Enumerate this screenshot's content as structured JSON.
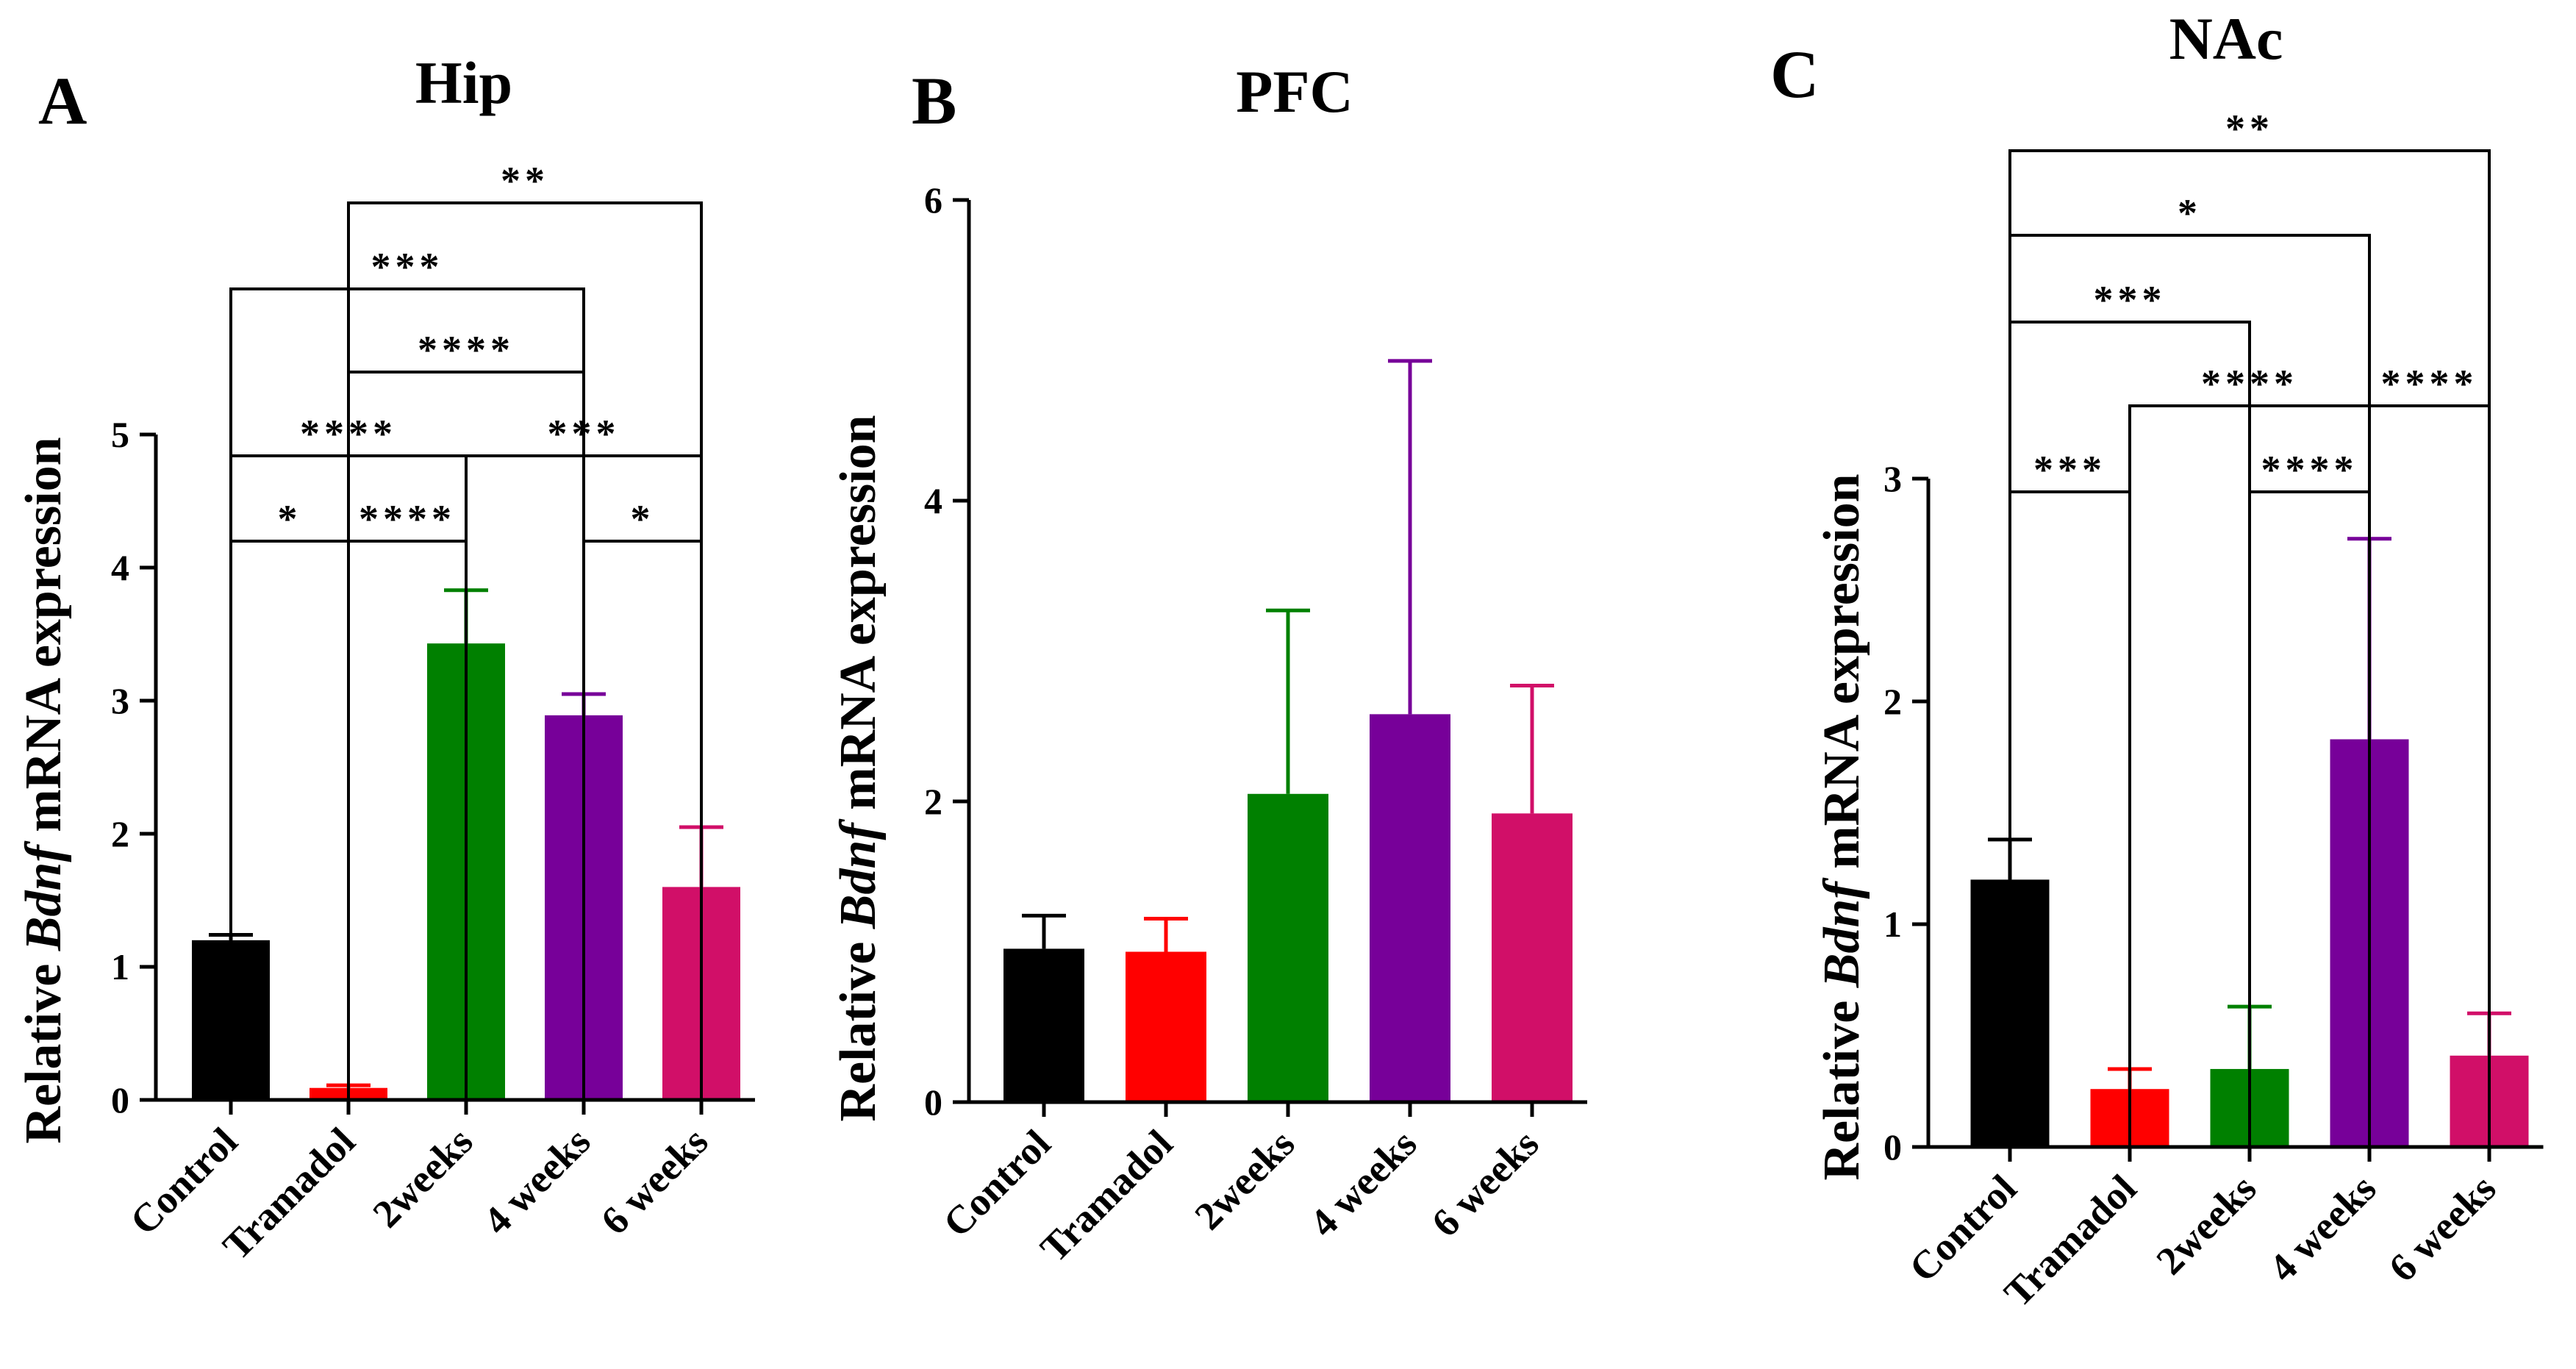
{
  "chart_data": [
    {
      "type": "bar",
      "panel_label": "A",
      "title": "Hip",
      "ylabel_parts": [
        "Relative ",
        "Bdnf",
        " mRNA expression"
      ],
      "ylim": [
        0,
        5
      ],
      "yticks": [
        0,
        1,
        2,
        3,
        4,
        5
      ],
      "categories": [
        "Control",
        "Tramadol",
        "2weeks",
        "4 weeks",
        "6 weeks"
      ],
      "values": [
        1.2,
        0.09,
        3.43,
        2.89,
        1.6
      ],
      "errors": [
        0.04,
        0.02,
        0.4,
        0.16,
        0.45
      ],
      "colors": [
        "#000000",
        "#ff0000",
        "#008000",
        "#770099",
        "#d10f68"
      ],
      "comparisons": [
        {
          "i": 0,
          "j": 1,
          "label": "*"
        },
        {
          "i": 1,
          "j": 2,
          "label": "****"
        },
        {
          "i": 3,
          "j": 4,
          "label": "*"
        },
        {
          "i": 0,
          "j": 2,
          "label": "****"
        },
        {
          "i": 2,
          "j": 4,
          "label": "***"
        },
        {
          "i": 1,
          "j": 3,
          "label": "****"
        },
        {
          "i": 0,
          "j": 3,
          "label": "***"
        },
        {
          "i": 1,
          "j": 4,
          "label": "**"
        }
      ]
    },
    {
      "type": "bar",
      "panel_label": "B",
      "title": "PFC",
      "ylabel_parts": [
        "Relative ",
        "Bdnf",
        " mRNA expression"
      ],
      "ylim": [
        0,
        6
      ],
      "yticks": [
        0,
        2,
        4,
        6
      ],
      "categories": [
        "Control",
        "Tramadol",
        "2weeks",
        "4 weeks",
        "6 weeks"
      ],
      "values": [
        1.02,
        1.0,
        2.05,
        2.58,
        1.92
      ],
      "errors": [
        0.22,
        0.22,
        1.22,
        2.35,
        0.85
      ],
      "colors": [
        "#000000",
        "#ff0000",
        "#008000",
        "#770099",
        "#d10f68"
      ],
      "comparisons": []
    },
    {
      "type": "bar",
      "panel_label": "C",
      "title": "NAc",
      "ylabel_parts": [
        "Relative ",
        "Bdnf",
        " mRNA expression"
      ],
      "ylim": [
        0,
        3
      ],
      "yticks": [
        0,
        1,
        2,
        3
      ],
      "categories": [
        "Control",
        "Tramadol",
        "2weeks",
        "4 weeks",
        "6 weeks"
      ],
      "values": [
        1.2,
        0.26,
        0.35,
        1.83,
        0.41
      ],
      "errors": [
        0.18,
        0.09,
        0.28,
        0.9,
        0.19
      ],
      "colors": [
        "#000000",
        "#ff0000",
        "#008000",
        "#770099",
        "#d10f68"
      ],
      "comparisons": [
        {
          "i": 0,
          "j": 1,
          "label": "***"
        },
        {
          "i": 2,
          "j": 3,
          "label": "****"
        },
        {
          "i": 1,
          "j": 3,
          "label": "****"
        },
        {
          "i": 3,
          "j": 4,
          "label": "****"
        },
        {
          "i": 0,
          "j": 2,
          "label": "***"
        },
        {
          "i": 0,
          "j": 3,
          "label": "*"
        },
        {
          "i": 0,
          "j": 4,
          "label": "**"
        }
      ]
    }
  ]
}
